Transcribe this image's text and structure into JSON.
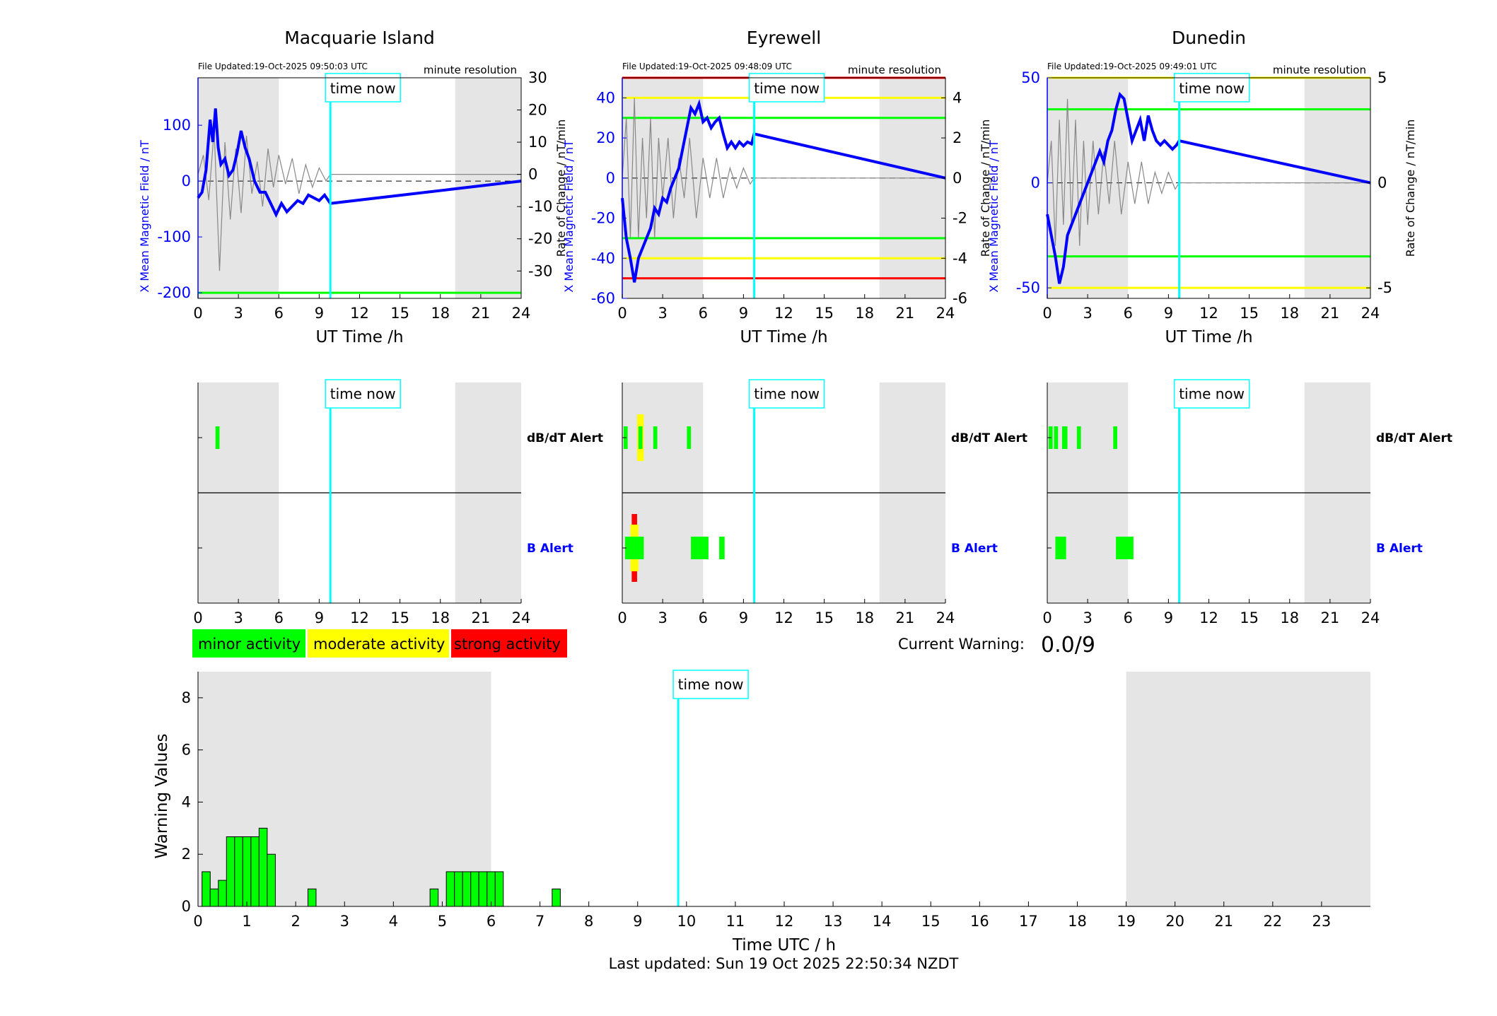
{
  "legend": [
    {
      "label": "minor activity",
      "color": "#00ff00"
    },
    {
      "label": "moderate activity",
      "color": "#ffff00"
    },
    {
      "label": "strong activity",
      "color": "#ff0000"
    }
  ],
  "current_warning": {
    "label": "Current Warning:",
    "value": "0.0/9"
  },
  "footer": "Last updated: Sun 19 Oct 2025 22:50:34 NZDT",
  "marker_label": "time now",
  "chart_data": [
    {
      "type": "line",
      "title": "Macquarie Island",
      "file_updated": "File Updated:19-Oct-2025 09:50:03 UTC",
      "resolution": "minute resolution",
      "xlabel": "UT Time /h",
      "ylabel_left": "X Mean Magnetic Field / nT",
      "ylabel_right": "Rate of Change / nT/min",
      "xlim": [
        0,
        24
      ],
      "xticks": [
        0,
        3,
        6,
        9,
        12,
        15,
        18,
        21,
        24
      ],
      "ylim_left": [
        -210,
        185
      ],
      "yticks_left": [
        -200,
        -100,
        0,
        100
      ],
      "ylim_right": [
        -38.5,
        30
      ],
      "yticks_right": [
        -30,
        -20,
        -10,
        0,
        10,
        20,
        30
      ],
      "time_now": 9.83,
      "night_shading": [
        [
          0,
          6
        ],
        [
          19.1,
          24
        ]
      ],
      "threshold_lines": [
        {
          "y": -200,
          "color": "#00ff00"
        }
      ],
      "series_field": {
        "x": [
          0,
          0.3,
          0.6,
          0.9,
          1.1,
          1.3,
          1.5,
          1.7,
          2.0,
          2.3,
          2.6,
          2.9,
          3.2,
          3.5,
          3.8,
          4.2,
          4.6,
          5.0,
          5.4,
          5.8,
          6.2,
          6.6,
          7.0,
          7.4,
          7.8,
          8.2,
          8.6,
          9.0,
          9.4,
          9.83,
          24
        ],
        "y": [
          -30,
          -20,
          20,
          110,
          70,
          130,
          60,
          30,
          40,
          10,
          20,
          50,
          90,
          60,
          40,
          0,
          -20,
          -20,
          -40,
          -60,
          -40,
          -55,
          -45,
          -35,
          -40,
          -25,
          -30,
          -35,
          -25,
          -40,
          0
        ]
      },
      "series_rate": {
        "x": [
          0,
          0.4,
          0.8,
          1.2,
          1.6,
          2.0,
          2.4,
          2.8,
          3.2,
          3.6,
          4.0,
          4.4,
          4.8,
          5.2,
          5.6,
          6.0,
          6.5,
          7.0,
          7.5,
          8.0,
          8.5,
          9.0,
          9.5,
          9.83,
          24
        ],
        "y": [
          0,
          6,
          -8,
          14,
          -30,
          10,
          -14,
          8,
          -12,
          12,
          -6,
          4,
          -10,
          8,
          -4,
          6,
          -3,
          5,
          -6,
          3,
          -4,
          2,
          -2,
          0,
          0
        ]
      }
    },
    {
      "type": "line",
      "title": "Eyrewell",
      "file_updated": "File Updated:19-Oct-2025 09:48:09 UTC",
      "resolution": "minute resolution",
      "xlabel": "UT Time /h",
      "ylabel_left": "X Mean Magnetic Field / nT",
      "ylabel_right": "Rate of Change / nT/min",
      "xlim": [
        0,
        24
      ],
      "xticks": [
        0,
        3,
        6,
        9,
        12,
        15,
        18,
        21,
        24
      ],
      "ylim_left": [
        -60,
        50
      ],
      "yticks_left": [
        -60,
        -40,
        -20,
        0,
        20,
        40
      ],
      "ylim_right": [
        -6,
        5
      ],
      "yticks_right": [
        -6,
        -4,
        -2,
        0,
        2,
        4
      ],
      "time_now": 9.8,
      "night_shading": [
        [
          0,
          6
        ],
        [
          19.1,
          24
        ]
      ],
      "threshold_lines": [
        {
          "y": 50,
          "color": "#ff0000"
        },
        {
          "y": 40,
          "color": "#ffff00"
        },
        {
          "y": 30,
          "color": "#00ff00"
        },
        {
          "y": -30,
          "color": "#00ff00"
        },
        {
          "y": -40,
          "color": "#ffff00"
        },
        {
          "y": -50,
          "color": "#ff0000"
        }
      ],
      "series_field": {
        "x": [
          0,
          0.3,
          0.6,
          0.9,
          1.2,
          1.5,
          1.8,
          2.1,
          2.4,
          2.7,
          3.0,
          3.3,
          3.6,
          3.9,
          4.2,
          4.5,
          4.8,
          5.1,
          5.4,
          5.7,
          6.0,
          6.3,
          6.6,
          6.9,
          7.2,
          7.5,
          7.8,
          8.1,
          8.4,
          8.7,
          9.0,
          9.3,
          9.6,
          9.8,
          24
        ],
        "y": [
          -10,
          -30,
          -40,
          -52,
          -40,
          -35,
          -30,
          -25,
          -15,
          -18,
          -10,
          -12,
          -5,
          0,
          5,
          15,
          25,
          35,
          32,
          37,
          28,
          30,
          25,
          28,
          30,
          22,
          15,
          18,
          15,
          18,
          16,
          18,
          17,
          22,
          0
        ]
      },
      "series_rate": {
        "x": [
          0,
          0.3,
          0.6,
          0.9,
          1.2,
          1.5,
          1.8,
          2.1,
          2.4,
          2.7,
          3.0,
          3.4,
          3.8,
          4.2,
          4.6,
          5.0,
          5.5,
          6.0,
          6.5,
          7.0,
          7.5,
          8.0,
          8.5,
          9.0,
          9.5,
          9.8,
          24
        ],
        "y": [
          0,
          3,
          -3,
          4,
          -3,
          2,
          -2,
          3,
          -3,
          2,
          -1,
          2,
          -2,
          1,
          -1,
          2,
          -2,
          1,
          -1,
          1,
          -1,
          0.5,
          -0.5,
          0.5,
          -0.3,
          0,
          0
        ]
      }
    },
    {
      "type": "line",
      "title": "Dunedin",
      "file_updated": "File Updated:19-Oct-2025 09:49:01 UTC",
      "resolution": "minute resolution",
      "xlabel": "UT Time /h",
      "ylabel_left": "X Mean Magnetic Field / nT",
      "ylabel_right": "Rate of Change / nT/min",
      "xlim": [
        0,
        24
      ],
      "xticks": [
        0,
        3,
        6,
        9,
        12,
        15,
        18,
        21,
        24
      ],
      "ylim_left": [
        -55,
        50
      ],
      "yticks_left": [
        -50,
        0,
        50
      ],
      "ylim_right": [
        -5.5,
        5
      ],
      "yticks_right": [
        -5,
        0,
        5
      ],
      "time_now": 9.8,
      "night_shading": [
        [
          0,
          6
        ],
        [
          19.1,
          24
        ]
      ],
      "threshold_lines": [
        {
          "y": 50,
          "color": "#ffff00"
        },
        {
          "y": 35,
          "color": "#00ff00"
        },
        {
          "y": -35,
          "color": "#00ff00"
        },
        {
          "y": -50,
          "color": "#ffff00"
        }
      ],
      "series_field": {
        "x": [
          0,
          0.3,
          0.6,
          0.9,
          1.2,
          1.5,
          1.8,
          2.1,
          2.4,
          2.7,
          3.0,
          3.3,
          3.6,
          3.9,
          4.2,
          4.5,
          4.8,
          5.1,
          5.4,
          5.7,
          6.0,
          6.3,
          6.6,
          6.9,
          7.2,
          7.5,
          7.8,
          8.1,
          8.4,
          8.7,
          9.0,
          9.3,
          9.6,
          9.8,
          24
        ],
        "y": [
          -15,
          -25,
          -35,
          -48,
          -40,
          -25,
          -20,
          -15,
          -10,
          -5,
          0,
          5,
          10,
          15,
          10,
          20,
          25,
          35,
          42,
          40,
          30,
          20,
          25,
          30,
          20,
          32,
          25,
          20,
          18,
          20,
          18,
          16,
          18,
          20,
          0
        ]
      },
      "series_rate": {
        "x": [
          0,
          0.3,
          0.6,
          0.9,
          1.2,
          1.5,
          1.8,
          2.1,
          2.4,
          2.7,
          3.0,
          3.4,
          3.8,
          4.2,
          4.6,
          5.0,
          5.5,
          6.0,
          6.5,
          7.0,
          7.5,
          8.0,
          8.5,
          9.0,
          9.5,
          9.8,
          24
        ],
        "y": [
          0,
          2,
          -3,
          3,
          -2,
          4,
          -2,
          3,
          -3,
          2,
          -2,
          2,
          -1.5,
          1.5,
          -1,
          2,
          -1.5,
          1,
          -1,
          1,
          -1,
          0.5,
          -0.5,
          0.5,
          -0.3,
          0,
          0
        ]
      }
    },
    {
      "type": "bar",
      "title": "",
      "alert_labels": [
        "dB/dT Alert",
        "B Alert"
      ],
      "xlim": [
        0,
        24
      ],
      "xticks": [
        0,
        3,
        6,
        9,
        12,
        15,
        18,
        21,
        24
      ],
      "time_now": 9.83,
      "night_shading": [
        [
          0,
          6
        ],
        [
          19.1,
          24
        ]
      ],
      "dbdt_bars": [
        {
          "x0": 1.3,
          "x1": 1.6,
          "level": "minor"
        }
      ],
      "b_bars": []
    },
    {
      "type": "bar",
      "title": "",
      "alert_labels": [
        "dB/dT Alert",
        "B Alert"
      ],
      "xlim": [
        0,
        24
      ],
      "xticks": [
        0,
        3,
        6,
        9,
        12,
        15,
        18,
        21,
        24
      ],
      "time_now": 9.8,
      "night_shading": [
        [
          0,
          6
        ],
        [
          19.1,
          24
        ]
      ],
      "dbdt_bars": [
        {
          "x0": 0.1,
          "x1": 0.4,
          "level": "minor"
        },
        {
          "x0": 1.1,
          "x1": 1.6,
          "level": "moderate"
        },
        {
          "x0": 1.2,
          "x1": 1.5,
          "level": "minor"
        },
        {
          "x0": 2.3,
          "x1": 2.6,
          "level": "minor"
        },
        {
          "x0": 4.8,
          "x1": 5.1,
          "level": "minor"
        }
      ],
      "b_bars": [
        {
          "x0": 0.7,
          "x1": 1.1,
          "level": "strong"
        },
        {
          "x0": 0.6,
          "x1": 1.2,
          "level": "moderate"
        },
        {
          "x0": 0.2,
          "x1": 1.6,
          "level": "minor"
        },
        {
          "x0": 5.1,
          "x1": 6.4,
          "level": "minor"
        },
        {
          "x0": 7.2,
          "x1": 7.6,
          "level": "minor"
        }
      ]
    },
    {
      "type": "bar",
      "title": "",
      "alert_labels": [
        "dB/dT Alert",
        "B Alert"
      ],
      "xlim": [
        0,
        24
      ],
      "xticks": [
        0,
        3,
        6,
        9,
        12,
        15,
        18,
        21,
        24
      ],
      "time_now": 9.8,
      "night_shading": [
        [
          0,
          6
        ],
        [
          19.1,
          24
        ]
      ],
      "dbdt_bars": [
        {
          "x0": 0.1,
          "x1": 0.4,
          "level": "minor"
        },
        {
          "x0": 0.5,
          "x1": 0.8,
          "level": "minor"
        },
        {
          "x0": 1.1,
          "x1": 1.5,
          "level": "minor"
        },
        {
          "x0": 2.2,
          "x1": 2.5,
          "level": "minor"
        },
        {
          "x0": 4.9,
          "x1": 5.2,
          "level": "minor"
        }
      ],
      "b_bars": [
        {
          "x0": 0.6,
          "x1": 1.4,
          "level": "minor"
        },
        {
          "x0": 5.1,
          "x1": 6.4,
          "level": "minor"
        }
      ]
    },
    {
      "type": "bar",
      "title": "",
      "xlabel": "Time UTC / h",
      "ylabel": "Warning Values",
      "xlim": [
        0,
        24
      ],
      "xticks": [
        0,
        1,
        2,
        3,
        4,
        5,
        6,
        7,
        8,
        9,
        10,
        11,
        12,
        13,
        14,
        15,
        16,
        17,
        18,
        19,
        20,
        21,
        22,
        23
      ],
      "ylim": [
        0,
        9
      ],
      "yticks": [
        0,
        2,
        4,
        6,
        8
      ],
      "time_now": 9.83,
      "night_shading": [
        [
          0,
          6
        ],
        [
          19,
          24
        ]
      ],
      "bar_width": 0.1667,
      "bars_x": [
        0.1667,
        0.3333,
        0.5,
        0.6667,
        0.8333,
        1.0,
        1.1667,
        1.3333,
        1.5,
        2.3333,
        4.8333,
        5.1667,
        5.3333,
        5.5,
        5.6667,
        5.8333,
        6.0,
        6.1667,
        7.3333
      ],
      "bars_y": [
        1.33,
        0.67,
        1.0,
        2.67,
        2.67,
        2.67,
        2.67,
        3.0,
        2.0,
        0.67,
        0.67,
        1.33,
        1.33,
        1.33,
        1.33,
        1.33,
        1.33,
        1.33,
        0.67
      ]
    }
  ]
}
